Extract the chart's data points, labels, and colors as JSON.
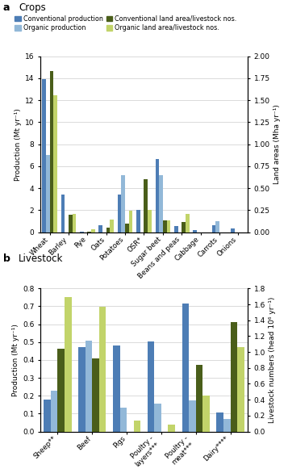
{
  "crops": {
    "categories": [
      "Wheat",
      "Barley",
      "Rye",
      "Oats",
      "Potatoes",
      "OSR*",
      "Sugar beet",
      "Beans and peas",
      "Cabbage",
      "Carrots",
      "Onions"
    ],
    "conv_production": [
      13.9,
      3.4,
      0.07,
      0.6,
      3.45,
      2.05,
      6.65,
      0.55,
      0.18,
      0.62,
      0.35
    ],
    "org_production": [
      7.0,
      0.0,
      0.0,
      0.0,
      5.2,
      0.0,
      5.2,
      0.0,
      0.0,
      1.0,
      0.0
    ],
    "conv_land": [
      1.83,
      0.2,
      0.01,
      0.055,
      0.1,
      0.6,
      0.13,
      0.12,
      0.0,
      0.0,
      0.0
    ],
    "org_land": [
      1.56,
      0.21,
      0.03,
      0.14,
      0.24,
      0.25,
      0.13,
      0.21,
      0.0,
      0.0,
      0.0
    ],
    "ylim_left": [
      0,
      16.0
    ],
    "ylim_right": [
      0,
      2.0
    ],
    "ylabel_left": "Production (Mt yr⁻¹)",
    "ylabel_right": "Land areas (Mha yr⁻¹)",
    "yticks_left": [
      0,
      2.0,
      4.0,
      6.0,
      8.0,
      10.0,
      12.0,
      14.0,
      16.0
    ],
    "yticks_right": [
      0.0,
      0.25,
      0.5,
      0.75,
      1.0,
      1.25,
      1.5,
      1.75,
      2.0
    ]
  },
  "livestock": {
    "categories": [
      "Sheep**",
      "Beef",
      "Pigs",
      "Poultry -\nlayers***",
      "Poultry -\nmeat***",
      "Dairy****"
    ],
    "conv_production": [
      0.18,
      0.47,
      0.48,
      0.505,
      0.715,
      0.105
    ],
    "org_production": [
      0.23,
      0.51,
      0.135,
      0.155,
      0.175,
      0.068
    ],
    "conv_livestock": [
      1.04,
      0.92,
      0.0,
      0.0,
      0.84,
      1.38
    ],
    "org_livestock": [
      1.69,
      1.57,
      0.135,
      0.09,
      0.45,
      1.06
    ],
    "ylim_left": [
      0,
      0.8
    ],
    "ylim_right": [
      0,
      1.8
    ],
    "ylabel_left": "Production (Mt yr⁻¹)",
    "ylabel_right": "Livestock numbers (head 10⁶ yr⁻¹)",
    "yticks_left": [
      0.0,
      0.1,
      0.2,
      0.3,
      0.4,
      0.5,
      0.6,
      0.7,
      0.8
    ],
    "yticks_right": [
      0.0,
      0.2,
      0.4,
      0.6,
      0.8,
      1.0,
      1.2,
      1.4,
      1.6,
      1.8
    ]
  },
  "colors": {
    "conv_prod": "#4d7db5",
    "org_prod": "#92b8d8",
    "conv_land": "#4a5e1a",
    "org_land": "#c2d46a"
  },
  "legend_labels": [
    "Conventional production",
    "Organic production",
    "Conventional land area/livestock nos.",
    "Organic land area/livestock nos."
  ]
}
